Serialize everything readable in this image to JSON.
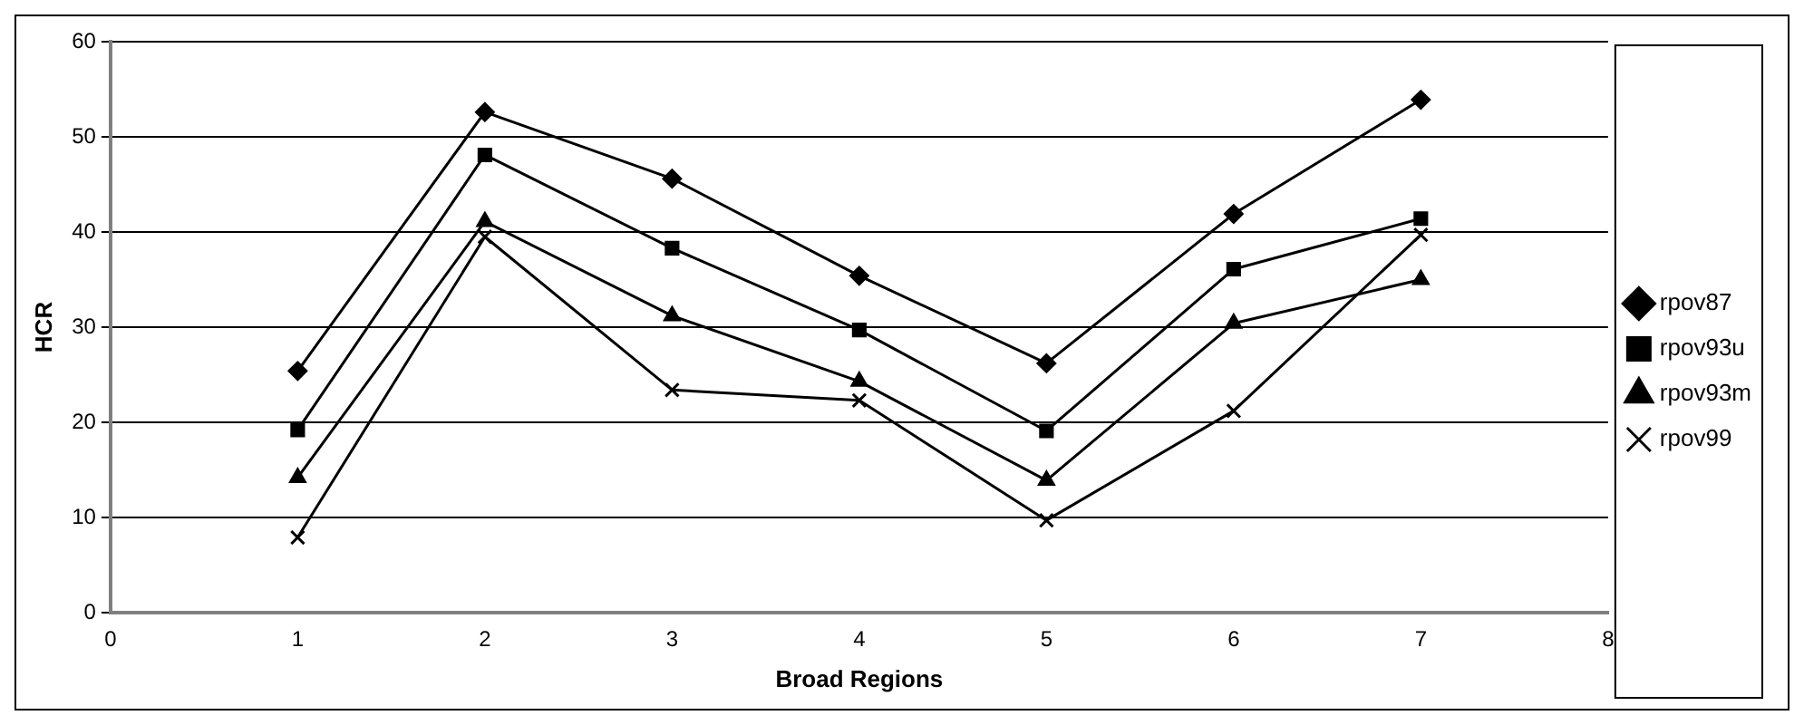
{
  "chart_data": {
    "type": "line",
    "xlabel": "Broad Regions",
    "ylabel": "HCR",
    "x": [
      1,
      2,
      3,
      4,
      5,
      6,
      7
    ],
    "xlim": [
      0,
      8
    ],
    "xticks": [
      0,
      1,
      2,
      3,
      4,
      5,
      6,
      7,
      8
    ],
    "ylim": [
      0,
      60
    ],
    "yticks": [
      0,
      10,
      20,
      30,
      40,
      50,
      60
    ],
    "grid": "y",
    "legend": "right",
    "series": [
      {
        "name": "rpov87",
        "color": "#000000",
        "marker": "diamond",
        "values": [
          25.4,
          52.6,
          45.6,
          35.4,
          26.2,
          41.9,
          53.9
        ]
      },
      {
        "name": "rpov93u",
        "color": "#000000",
        "marker": "square",
        "values": [
          19.2,
          48.1,
          38.3,
          29.7,
          19.1,
          36.1,
          41.4
        ]
      },
      {
        "name": "rpov93m",
        "color": "#000000",
        "marker": "triangle",
        "values": [
          14.2,
          41.1,
          31.2,
          24.3,
          13.9,
          30.4,
          35.0
        ]
      },
      {
        "name": "rpov99",
        "color": "#000000",
        "marker": "cross",
        "values": [
          7.9,
          39.5,
          23.4,
          22.3,
          9.7,
          21.2,
          39.7
        ]
      }
    ]
  }
}
